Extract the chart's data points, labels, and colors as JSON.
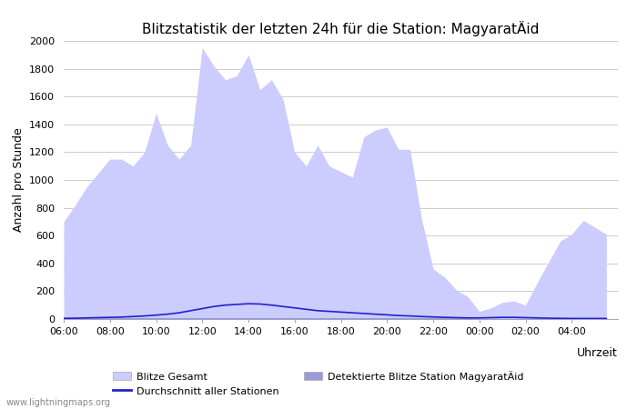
{
  "title": "Blitzstatistik der letzten 24h für die Station: MagyaratÄid",
  "ylabel": "Anzahl pro Stunde",
  "xlabel": "Uhrzeit",
  "watermark": "www.lightningmaps.org",
  "ylim": [
    0,
    2000
  ],
  "yticks": [
    0,
    200,
    400,
    600,
    800,
    1000,
    1200,
    1400,
    1600,
    1800,
    2000
  ],
  "x_labels": [
    "06:00",
    "08:00",
    "10:00",
    "12:00",
    "14:00",
    "16:00",
    "18:00",
    "20:00",
    "22:00",
    "00:00",
    "02:00",
    "04:00"
  ],
  "bg_color": "#ffffff",
  "fill_gesamt_color": "#ccccff",
  "fill_station_color": "#9999dd",
  "line_color": "#2222cc",
  "legend_gesamt": "Blitze Gesamt",
  "legend_station": "Detektierte Blitze Station MagyaratÄid",
  "legend_avg": "Durchschnitt aller Stationen",
  "x": [
    0,
    0.5,
    1,
    1.5,
    2,
    2.5,
    3,
    3.5,
    4,
    4.5,
    5,
    5.5,
    6,
    6.5,
    7,
    7.5,
    8,
    8.5,
    9,
    9.5,
    10,
    10.5,
    11,
    11.5,
    12,
    12.5,
    13,
    13.5,
    14,
    14.5,
    15,
    15.5,
    16,
    16.5,
    17,
    17.5,
    18,
    18.5,
    19,
    19.5,
    20,
    20.5,
    21,
    21.5,
    22,
    22.5,
    23,
    23.5
  ],
  "gesamt": [
    700,
    820,
    950,
    1050,
    1150,
    1150,
    1100,
    1200,
    1480,
    1250,
    1150,
    1250,
    1950,
    1820,
    1720,
    1750,
    1900,
    1650,
    1720,
    1580,
    1200,
    1100,
    1250,
    1100,
    1060,
    1020,
    1310,
    1360,
    1380,
    1220,
    1220,
    720,
    360,
    300,
    210,
    160,
    55,
    80,
    120,
    130,
    100,
    260,
    410,
    560,
    610,
    710,
    660,
    610
  ],
  "station": [
    10,
    10,
    10,
    10,
    10,
    10,
    10,
    10,
    10,
    10,
    10,
    10,
    10,
    10,
    10,
    10,
    10,
    10,
    10,
    10,
    10,
    10,
    10,
    10,
    10,
    10,
    10,
    10,
    10,
    10,
    10,
    10,
    10,
    10,
    10,
    10,
    5,
    5,
    5,
    5,
    5,
    5,
    5,
    5,
    5,
    5,
    5,
    5
  ],
  "avg_line": [
    5,
    6,
    8,
    10,
    12,
    14,
    18,
    22,
    28,
    35,
    45,
    60,
    75,
    90,
    100,
    105,
    110,
    108,
    100,
    90,
    80,
    70,
    60,
    55,
    50,
    45,
    40,
    35,
    30,
    25,
    22,
    18,
    15,
    12,
    10,
    8,
    8,
    10,
    12,
    12,
    10,
    8,
    6,
    5,
    4,
    4,
    4,
    4
  ]
}
